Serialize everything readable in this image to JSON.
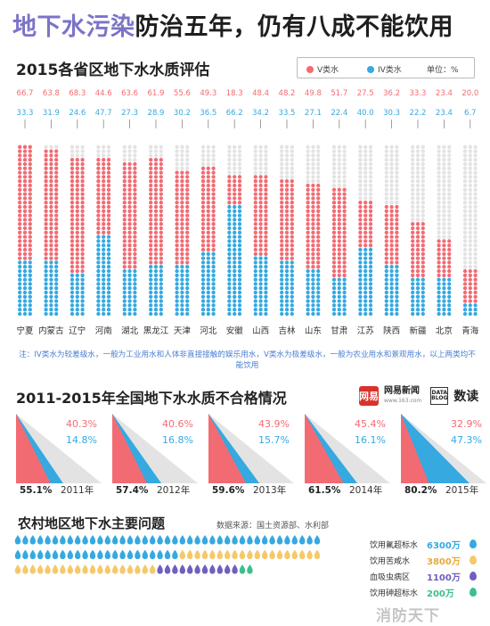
{
  "headline": {
    "part1": "地下水污染",
    "part2": "防治五年，仍有八成不能饮用"
  },
  "section1": {
    "title": "2015各省区地下水水质评估",
    "legend": {
      "v_label": "V类水",
      "iv_label": "IV类水",
      "unit": "单位：%"
    },
    "note": "注：IV类水为较差级水，一般为工业用水和人体非直接接触的娱乐用水，V类水为极差级水，一般为农业用水和景观用水，以上两类均不能饮用"
  },
  "section2": {
    "title": "2011-2015年全国地下水水质不合格情况"
  },
  "section3": {
    "title": "农村地区地下水主要问题",
    "source": "数据来源：国土资源部、水利部"
  },
  "brand": {
    "logo": "网易",
    "name": "网易新闻",
    "url": "www.163.com",
    "data_logo": "DATA BLOG",
    "data_name": "数读"
  },
  "watermark": "消防天下",
  "colors": {
    "v_class": "#f26b73",
    "iv_class": "#35a9e0",
    "empty": "#e3e3e3",
    "dark_text": "#222222",
    "yellow": "#f5c96b",
    "green": "#3cbf8c",
    "purple": "#6f5fbf"
  },
  "chart_data": [
    {
      "type": "bar",
      "title": "2015各省区地下水水质评估",
      "unit": "%",
      "categories": [
        "宁夏",
        "内蒙古",
        "辽宁",
        "河南",
        "湖北",
        "黑龙江",
        "天津",
        "河北",
        "安徽",
        "山西",
        "吉林",
        "山东",
        "甘肃",
        "江苏",
        "陕西",
        "新疆",
        "北京",
        "青海"
      ],
      "series": [
        {
          "name": "V类水",
          "color": "#f26b73",
          "values": [
            66.7,
            63.8,
            68.3,
            44.6,
            63.6,
            61.9,
            55.6,
            49.3,
            18.3,
            48.4,
            48.2,
            49.8,
            51.7,
            27.5,
            36.2,
            33.3,
            23.4,
            20.0
          ]
        },
        {
          "name": "IV类水",
          "color": "#35a9e0",
          "values": [
            33.3,
            31.9,
            24.6,
            47.7,
            27.3,
            28.9,
            30.2,
            36.5,
            66.2,
            34.2,
            33.5,
            27.1,
            22.4,
            40.0,
            30.3,
            22.2,
            23.4,
            6.7
          ]
        }
      ],
      "ylim": [
        0,
        100
      ]
    },
    {
      "type": "area",
      "title": "2011-2015年全国地下水水质不合格情况",
      "unit": "%",
      "categories": [
        "2011年",
        "2012年",
        "2013年",
        "2014年",
        "2015年"
      ],
      "series": [
        {
          "name": "V类水",
          "color": "#f26b73",
          "values": [
            40.3,
            40.6,
            43.9,
            45.4,
            32.9
          ]
        },
        {
          "name": "IV类水",
          "color": "#35a9e0",
          "values": [
            14.8,
            16.8,
            15.7,
            16.1,
            47.3
          ]
        },
        {
          "name": "合计",
          "values": [
            55.1,
            57.4,
            59.6,
            61.5,
            80.2
          ]
        }
      ]
    },
    {
      "type": "bar",
      "title": "农村地区地下水主要问题",
      "unit": "万",
      "categories": [
        "饮用氟超标水",
        "饮用苦咸水",
        "血吸虫病区",
        "饮用砷超标水"
      ],
      "values": [
        6300,
        3800,
        1100,
        200
      ],
      "labels": [
        "6300万",
        "3800万",
        "1100万",
        "200万"
      ],
      "colors": [
        "#35a9e0",
        "#f5c96b",
        "#6f5fbf",
        "#3cbf8c"
      ]
    }
  ]
}
